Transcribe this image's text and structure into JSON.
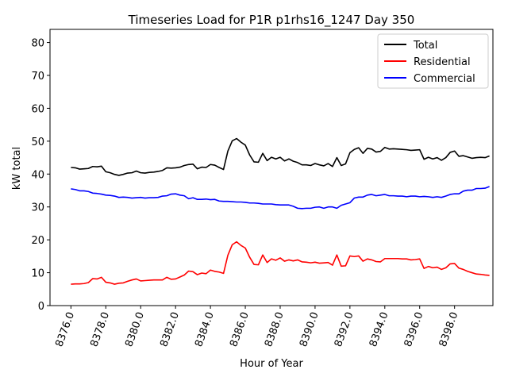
{
  "chart_data": {
    "type": "line",
    "title": "Timeseries Load for P1R p1rhs16_1247  Day 350",
    "xlabel": "Hour of Year",
    "ylabel": "kW total",
    "xlim": [
      8374.8,
      8400.2
    ],
    "ylim": [
      0,
      84
    ],
    "x_ticks": [
      8376,
      8378,
      8380,
      8382,
      8384,
      8386,
      8388,
      8390,
      8392,
      8394,
      8396,
      8398
    ],
    "x_tick_labels": [
      "8376.0",
      "8378.0",
      "8380.0",
      "8382.0",
      "8384.0",
      "8386.0",
      "8388.0",
      "8390.0",
      "8392.0",
      "8394.0",
      "8396.0",
      "8398.0"
    ],
    "y_ticks": [
      0,
      10,
      20,
      30,
      40,
      50,
      60,
      70,
      80
    ],
    "y_tick_labels": [
      "0",
      "10",
      "20",
      "30",
      "40",
      "50",
      "60",
      "70",
      "80"
    ],
    "legend_position": "top-right",
    "x_start": 8376.0,
    "x_step": 0.25,
    "series": [
      {
        "name": "Total",
        "color": "#000000",
        "values": [
          42.0,
          41.9,
          41.5,
          41.6,
          41.7,
          42.3,
          42.2,
          42.4,
          40.7,
          40.4,
          39.9,
          39.6,
          39.9,
          40.3,
          40.4,
          40.9,
          40.4,
          40.3,
          40.5,
          40.6,
          40.8,
          41.1,
          41.9,
          41.8,
          41.9,
          42.1,
          42.6,
          42.9,
          43.0,
          41.6,
          42.1,
          42.0,
          42.9,
          42.7,
          42.0,
          41.4,
          47.0,
          50.1,
          50.8,
          49.7,
          48.8,
          45.8,
          43.7,
          43.6,
          46.3,
          44.1,
          45.1,
          44.6,
          45.1,
          44.0,
          44.6,
          43.9,
          43.5,
          42.8,
          42.8,
          42.6,
          43.2,
          42.8,
          42.5,
          43.2,
          42.3,
          45.0,
          42.6,
          43.1,
          46.5,
          47.5,
          48.0,
          46.3,
          47.8,
          47.6,
          46.7,
          46.9,
          48.1,
          47.6,
          47.7,
          47.6,
          47.5,
          47.4,
          47.2,
          47.3,
          47.4,
          44.5,
          45.1,
          44.6,
          45.0,
          44.2,
          45.0,
          46.6,
          47.0,
          45.4,
          45.6,
          45.2,
          44.8,
          45.0,
          45.1,
          45.0,
          45.5
        ]
      },
      {
        "name": "Residential",
        "color": "#ff0000",
        "values": [
          6.5,
          6.6,
          6.6,
          6.7,
          7.0,
          8.2,
          8.1,
          8.6,
          7.1,
          6.9,
          6.5,
          6.8,
          6.9,
          7.4,
          7.8,
          8.1,
          7.5,
          7.6,
          7.7,
          7.8,
          7.8,
          7.8,
          8.6,
          8.0,
          8.1,
          8.7,
          9.3,
          10.5,
          10.3,
          9.4,
          9.9,
          9.7,
          10.8,
          10.4,
          10.2,
          9.8,
          15.3,
          18.5,
          19.4,
          18.3,
          17.5,
          14.7,
          12.5,
          12.4,
          15.4,
          13.1,
          14.2,
          13.8,
          14.5,
          13.5,
          13.9,
          13.6,
          13.9,
          13.3,
          13.2,
          13.0,
          13.2,
          12.9,
          13.0,
          13.1,
          12.3,
          15.4,
          12.0,
          12.1,
          15.1,
          14.9,
          15.1,
          13.5,
          14.2,
          13.9,
          13.4,
          13.3,
          14.3,
          14.3,
          14.3,
          14.3,
          14.2,
          14.2,
          13.9,
          14.0,
          14.2,
          11.3,
          11.9,
          11.5,
          11.7,
          11.0,
          11.5,
          12.7,
          12.8,
          11.4,
          11.0,
          10.4,
          10.0,
          9.6,
          9.5,
          9.3,
          9.2
        ]
      },
      {
        "name": "Commercial",
        "color": "#0000ff",
        "values": [
          35.5,
          35.3,
          34.9,
          34.9,
          34.7,
          34.2,
          34.1,
          33.9,
          33.6,
          33.5,
          33.3,
          32.9,
          33.0,
          32.9,
          32.7,
          32.8,
          32.9,
          32.7,
          32.8,
          32.8,
          32.9,
          33.3,
          33.4,
          33.9,
          34.0,
          33.6,
          33.4,
          32.5,
          32.8,
          32.3,
          32.3,
          32.4,
          32.2,
          32.3,
          31.8,
          31.7,
          31.7,
          31.6,
          31.5,
          31.5,
          31.4,
          31.2,
          31.2,
          31.1,
          30.9,
          30.9,
          30.9,
          30.7,
          30.6,
          30.6,
          30.6,
          30.2,
          29.6,
          29.5,
          29.6,
          29.6,
          29.9,
          30.0,
          29.6,
          30.0,
          30.0,
          29.6,
          30.5,
          30.9,
          31.3,
          32.7,
          33.0,
          33.0,
          33.6,
          33.8,
          33.4,
          33.6,
          33.8,
          33.4,
          33.4,
          33.3,
          33.3,
          33.1,
          33.3,
          33.3,
          33.1,
          33.2,
          33.1,
          32.9,
          33.1,
          32.9,
          33.3,
          33.8,
          34.0,
          34.0,
          34.8,
          35.1,
          35.1,
          35.6,
          35.6,
          35.7,
          36.2
        ]
      }
    ]
  }
}
